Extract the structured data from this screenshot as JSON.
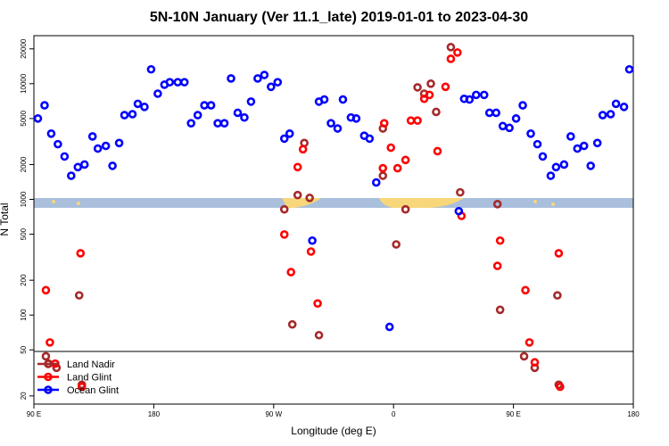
{
  "chart_data": {
    "type": "scatter",
    "title": "5N-10N January (Ver 11.1_late)   2019-01-01 to 2023-04-30",
    "x_label": "Longitude (deg E)",
    "y_label": "N Total",
    "xlim": [
      90,
      540
    ],
    "ylim": [
      17,
      26000
    ],
    "log_y": true,
    "xticks": [
      {
        "value": 90,
        "label": "90 E"
      },
      180,
      {
        "value": 270,
        "label": "90 W"
      },
      {
        "value": 360,
        "label": "0"
      },
      {
        "value": 450,
        "label": "90 E"
      },
      {
        "value": 540,
        "label": "180"
      }
    ],
    "yticks": [
      20,
      50,
      100,
      200,
      500,
      1000,
      2000,
      5000,
      10000,
      20000
    ],
    "legend": "bottom-left",
    "series": [
      {
        "name": "Land Nadir",
        "color": "#a52a2a",
        "x": [
          99,
          101,
          107,
          124,
          126,
          278,
          284,
          288,
          293,
          297,
          304,
          352,
          352,
          362,
          369,
          378,
          383,
          388,
          392,
          403,
          410,
          438,
          440,
          458,
          466,
          483,
          484
        ],
        "values": [
          44,
          38,
          35,
          148,
          25,
          820,
          83,
          1090,
          3070,
          1030,
          67,
          4100,
          1600,
          408,
          820,
          9300,
          8200,
          10000,
          5700,
          20700,
          1150,
          910,
          111,
          44,
          35,
          148,
          25
        ]
      },
      {
        "name": "Land Glint",
        "color": "#ff0000",
        "x": [
          99,
          102,
          106,
          125,
          126,
          283,
          288,
          292,
          278,
          298,
          303,
          352,
          353,
          358,
          363,
          369,
          373,
          378,
          383,
          387,
          399,
          393,
          403,
          408,
          411,
          440,
          438,
          459,
          462,
          466,
          484,
          485
        ],
        "values": [
          164,
          58,
          38,
          342,
          24,
          235,
          1900,
          2710,
          497,
          354,
          126,
          1860,
          4550,
          2800,
          1860,
          2190,
          4800,
          4800,
          7400,
          8000,
          9400,
          2610,
          16400,
          18600,
          720,
          440,
          266,
          164,
          58,
          39,
          342,
          24
        ]
      },
      {
        "name": "Ocean Glint",
        "color": "#0000ff",
        "x": [
          93,
          98,
          103,
          108,
          113,
          118,
          123,
          128,
          134,
          138,
          144,
          149,
          154,
          158,
          164,
          168,
          173,
          178,
          183,
          188,
          192,
          198,
          203,
          208,
          213,
          218,
          223,
          228,
          233,
          238,
          243,
          248,
          253,
          258,
          263,
          268,
          273,
          278,
          282,
          299,
          304,
          308,
          313,
          318,
          322,
          328,
          332,
          338,
          342,
          347,
          357,
          409,
          413,
          417,
          422,
          428,
          432,
          437,
          442,
          447,
          452,
          457,
          463,
          468,
          472,
          478,
          482,
          488,
          493,
          498,
          503,
          508,
          513,
          517,
          523,
          527,
          533,
          537
        ],
        "values": [
          5000,
          6500,
          3700,
          3000,
          2350,
          1600,
          1900,
          2000,
          3500,
          2750,
          2900,
          1950,
          3070,
          5350,
          5450,
          6700,
          6300,
          13300,
          8200,
          9800,
          10300,
          10300,
          10300,
          4550,
          5350,
          6500,
          6500,
          4550,
          4550,
          11100,
          5600,
          5100,
          7000,
          11100,
          11900,
          9400,
          10300,
          3350,
          3700,
          440,
          7000,
          7300,
          4550,
          4100,
          7300,
          5100,
          5000,
          3550,
          3350,
          1400,
          79,
          790,
          7400,
          7300,
          8000,
          8000,
          5600,
          5600,
          4300,
          4150,
          5000,
          6500,
          3700,
          3000,
          2350,
          1600,
          1900,
          2000,
          3500,
          2750,
          2900,
          1950,
          3070,
          5350,
          5450,
          6700,
          6300,
          13300
        ]
      }
    ]
  }
}
